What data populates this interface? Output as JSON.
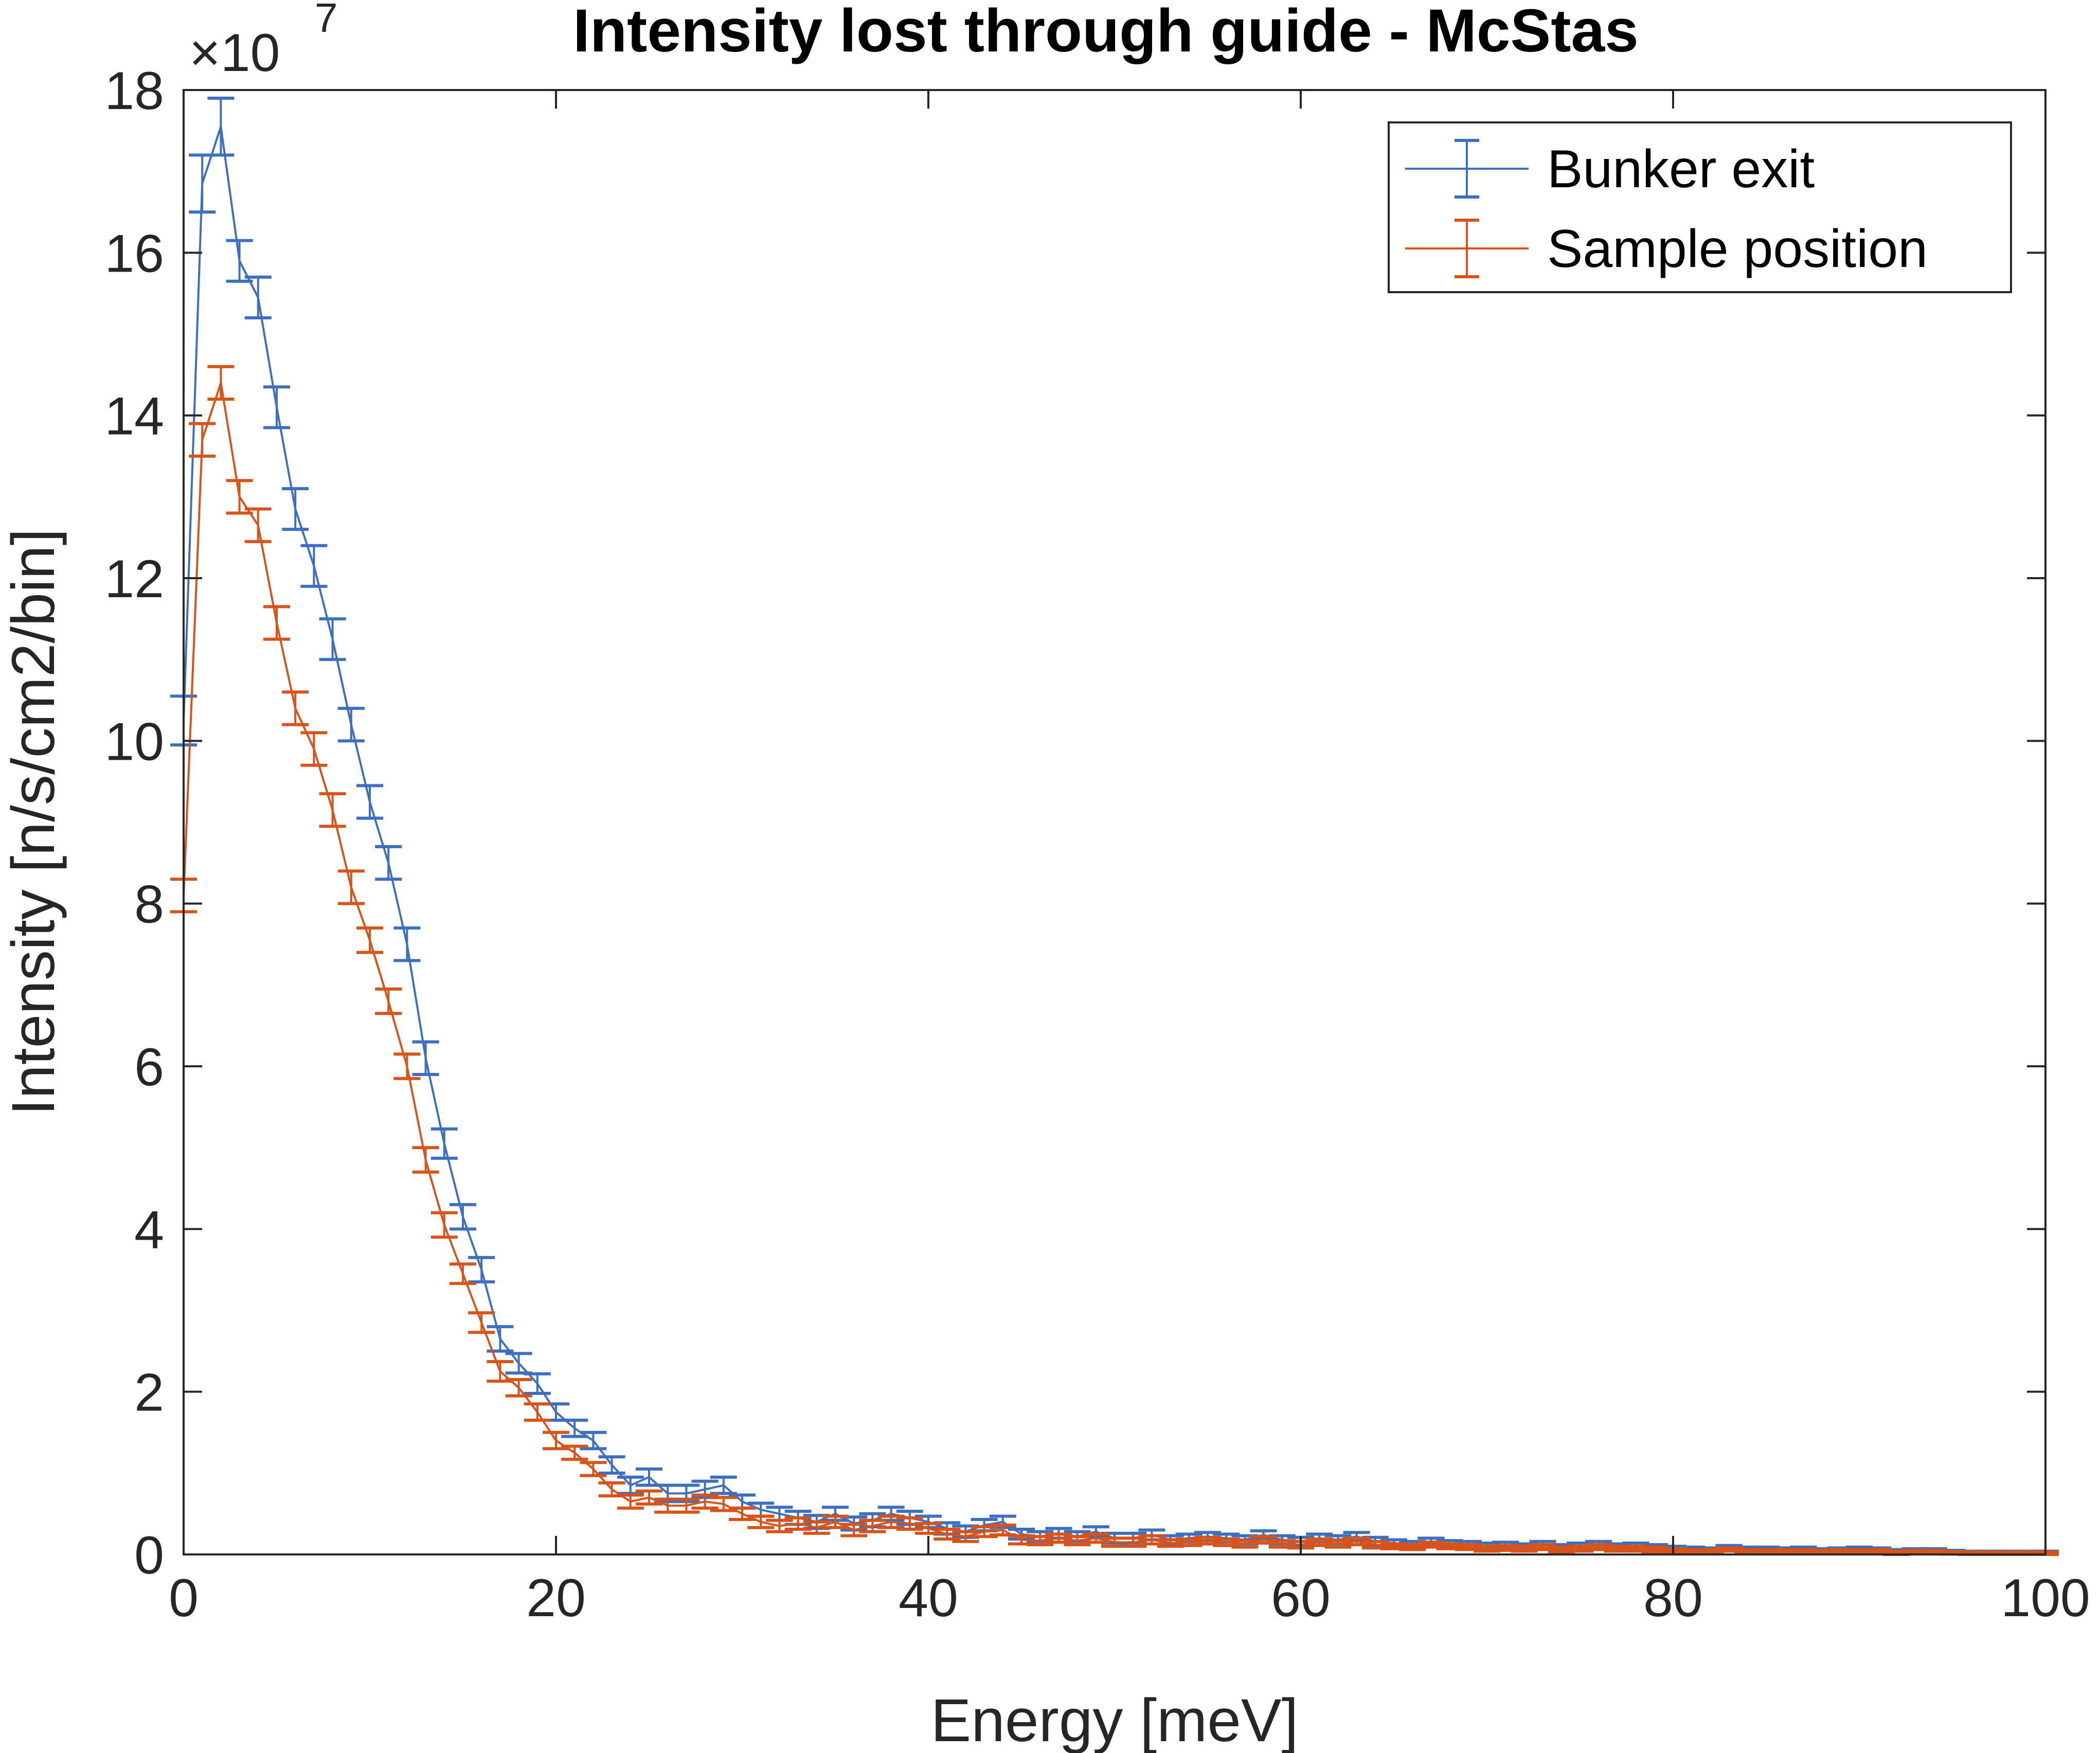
{
  "chart_data": {
    "type": "line",
    "title": "Intensity lost through guide - McStas",
    "xlabel": "Energy [meV]",
    "ylabel": "Intensity [n/s/cm2/bin]",
    "y_multiplier": "×10",
    "y_multiplier_exponent": "7",
    "xlim": [
      0,
      100
    ],
    "ylim": [
      0,
      18
    ],
    "x_ticks": [
      "0",
      "20",
      "40",
      "60",
      "80",
      "100"
    ],
    "y_ticks": [
      "0",
      "2",
      "4",
      "6",
      "8",
      "10",
      "12",
      "14",
      "16",
      "18"
    ],
    "x_tick_values": [
      0,
      20,
      40,
      60,
      80,
      100
    ],
    "y_tick_values": [
      0,
      2,
      4,
      6,
      8,
      10,
      12,
      14,
      16,
      18
    ],
    "grid": false,
    "legend_position": "top-right",
    "error_bars": true,
    "x": [
      0,
      1,
      2,
      3,
      4,
      5,
      6,
      7,
      8,
      9,
      10,
      11,
      12,
      13,
      14,
      15,
      16,
      17,
      18,
      19,
      20,
      21,
      22,
      23,
      24,
      25,
      26,
      27,
      28,
      29,
      30,
      31,
      32,
      33,
      34,
      35,
      36,
      37,
      38,
      39,
      40,
      41,
      42,
      43,
      44,
      45,
      46,
      47,
      48,
      49,
      50,
      51,
      52,
      53,
      54,
      55,
      56,
      57,
      58,
      59,
      60,
      61,
      62,
      63,
      64,
      65,
      66,
      67,
      68,
      69,
      70,
      71,
      72,
      73,
      74,
      75,
      76,
      77,
      78,
      79,
      80,
      81,
      82,
      83,
      84,
      85,
      86,
      87,
      88,
      89,
      90,
      91,
      92,
      93,
      94,
      95,
      96,
      97,
      98,
      99,
      100
    ],
    "series": [
      {
        "name": "Bunker exit",
        "color": "#3c6fc0",
        "values": [
          10.25,
          16.85,
          17.55,
          15.9,
          15.45,
          14.1,
          12.85,
          12.15,
          11.25,
          10.2,
          9.25,
          8.5,
          7.5,
          6.1,
          5.05,
          4.15,
          3.5,
          2.65,
          2.35,
          2.1,
          1.75,
          1.55,
          1.4,
          1.1,
          0.85,
          0.95,
          0.75,
          0.75,
          0.8,
          0.85,
          0.65,
          0.55,
          0.5,
          0.45,
          0.4,
          0.5,
          0.38,
          0.42,
          0.5,
          0.45,
          0.4,
          0.32,
          0.28,
          0.36,
          0.4,
          0.25,
          0.22,
          0.26,
          0.22,
          0.28,
          0.2,
          0.2,
          0.24,
          0.18,
          0.2,
          0.22,
          0.2,
          0.18,
          0.24,
          0.18,
          0.16,
          0.2,
          0.18,
          0.22,
          0.16,
          0.14,
          0.12,
          0.16,
          0.13,
          0.12,
          0.1,
          0.11,
          0.09,
          0.12,
          0.08,
          0.1,
          0.12,
          0.09,
          0.1,
          0.08,
          0.07,
          0.06,
          0.05,
          0.08,
          0.06,
          0.06,
          0.05,
          0.06,
          0.04,
          0.05,
          0.06,
          0.05,
          0.03,
          0.04,
          0.04,
          0.03,
          0.02,
          0.02,
          0.02,
          0.02,
          0.02
        ],
        "errors": [
          0.3,
          0.35,
          0.35,
          0.25,
          0.25,
          0.25,
          0.25,
          0.25,
          0.25,
          0.2,
          0.2,
          0.2,
          0.2,
          0.2,
          0.18,
          0.15,
          0.15,
          0.15,
          0.12,
          0.12,
          0.1,
          0.1,
          0.1,
          0.1,
          0.1,
          0.1,
          0.1,
          0.1,
          0.1,
          0.1,
          0.08,
          0.08,
          0.08,
          0.08,
          0.08,
          0.08,
          0.08,
          0.08,
          0.08,
          0.08,
          0.07,
          0.07,
          0.07,
          0.07,
          0.07,
          0.06,
          0.06,
          0.06,
          0.06,
          0.06,
          0.06,
          0.06,
          0.06,
          0.05,
          0.05,
          0.05,
          0.05,
          0.05,
          0.05,
          0.05,
          0.05,
          0.05,
          0.05,
          0.05,
          0.05,
          0.04,
          0.04,
          0.04,
          0.04,
          0.04,
          0.04,
          0.04,
          0.04,
          0.04,
          0.04,
          0.04,
          0.04,
          0.04,
          0.04,
          0.04,
          0.03,
          0.03,
          0.03,
          0.03,
          0.03,
          0.03,
          0.03,
          0.03,
          0.03,
          0.03,
          0.03,
          0.03,
          0.03,
          0.03,
          0.03,
          0.02,
          0.02,
          0.02,
          0.02,
          0.02,
          0.02
        ]
      },
      {
        "name": "Sample position",
        "color": "#d95319",
        "values": [
          8.1,
          13.7,
          14.4,
          13.0,
          12.65,
          11.45,
          10.4,
          9.9,
          9.15,
          8.2,
          7.55,
          6.8,
          6.0,
          4.85,
          4.05,
          3.45,
          2.85,
          2.25,
          2.05,
          1.75,
          1.4,
          1.25,
          1.05,
          0.8,
          0.65,
          0.7,
          0.6,
          0.6,
          0.65,
          0.62,
          0.5,
          0.4,
          0.35,
          0.38,
          0.33,
          0.4,
          0.3,
          0.35,
          0.4,
          0.38,
          0.32,
          0.25,
          0.22,
          0.28,
          0.3,
          0.18,
          0.17,
          0.2,
          0.17,
          0.2,
          0.15,
          0.15,
          0.18,
          0.14,
          0.15,
          0.17,
          0.15,
          0.13,
          0.18,
          0.13,
          0.12,
          0.15,
          0.13,
          0.16,
          0.12,
          0.1,
          0.09,
          0.12,
          0.1,
          0.09,
          0.07,
          0.08,
          0.07,
          0.09,
          0.06,
          0.07,
          0.09,
          0.07,
          0.07,
          0.06,
          0.05,
          0.04,
          0.04,
          0.06,
          0.04,
          0.04,
          0.04,
          0.04,
          0.03,
          0.04,
          0.04,
          0.04,
          0.02,
          0.03,
          0.03,
          0.02,
          0.015,
          0.015,
          0.015,
          0.015,
          0.015
        ],
        "errors": [
          0.2,
          0.2,
          0.2,
          0.2,
          0.2,
          0.2,
          0.2,
          0.2,
          0.2,
          0.2,
          0.15,
          0.15,
          0.15,
          0.15,
          0.15,
          0.12,
          0.12,
          0.12,
          0.1,
          0.1,
          0.1,
          0.08,
          0.08,
          0.08,
          0.08,
          0.08,
          0.08,
          0.08,
          0.08,
          0.08,
          0.07,
          0.07,
          0.07,
          0.07,
          0.07,
          0.07,
          0.07,
          0.07,
          0.07,
          0.07,
          0.06,
          0.06,
          0.06,
          0.06,
          0.06,
          0.05,
          0.05,
          0.05,
          0.05,
          0.05,
          0.05,
          0.05,
          0.05,
          0.04,
          0.04,
          0.04,
          0.04,
          0.04,
          0.04,
          0.04,
          0.04,
          0.04,
          0.04,
          0.04,
          0.04,
          0.03,
          0.03,
          0.03,
          0.03,
          0.03,
          0.03,
          0.03,
          0.03,
          0.03,
          0.03,
          0.03,
          0.03,
          0.03,
          0.03,
          0.03,
          0.02,
          0.02,
          0.02,
          0.02,
          0.02,
          0.02,
          0.02,
          0.02,
          0.02,
          0.02,
          0.02,
          0.02,
          0.02,
          0.02,
          0.02,
          0.015,
          0.015,
          0.015,
          0.015,
          0.015,
          0.015
        ]
      }
    ]
  }
}
